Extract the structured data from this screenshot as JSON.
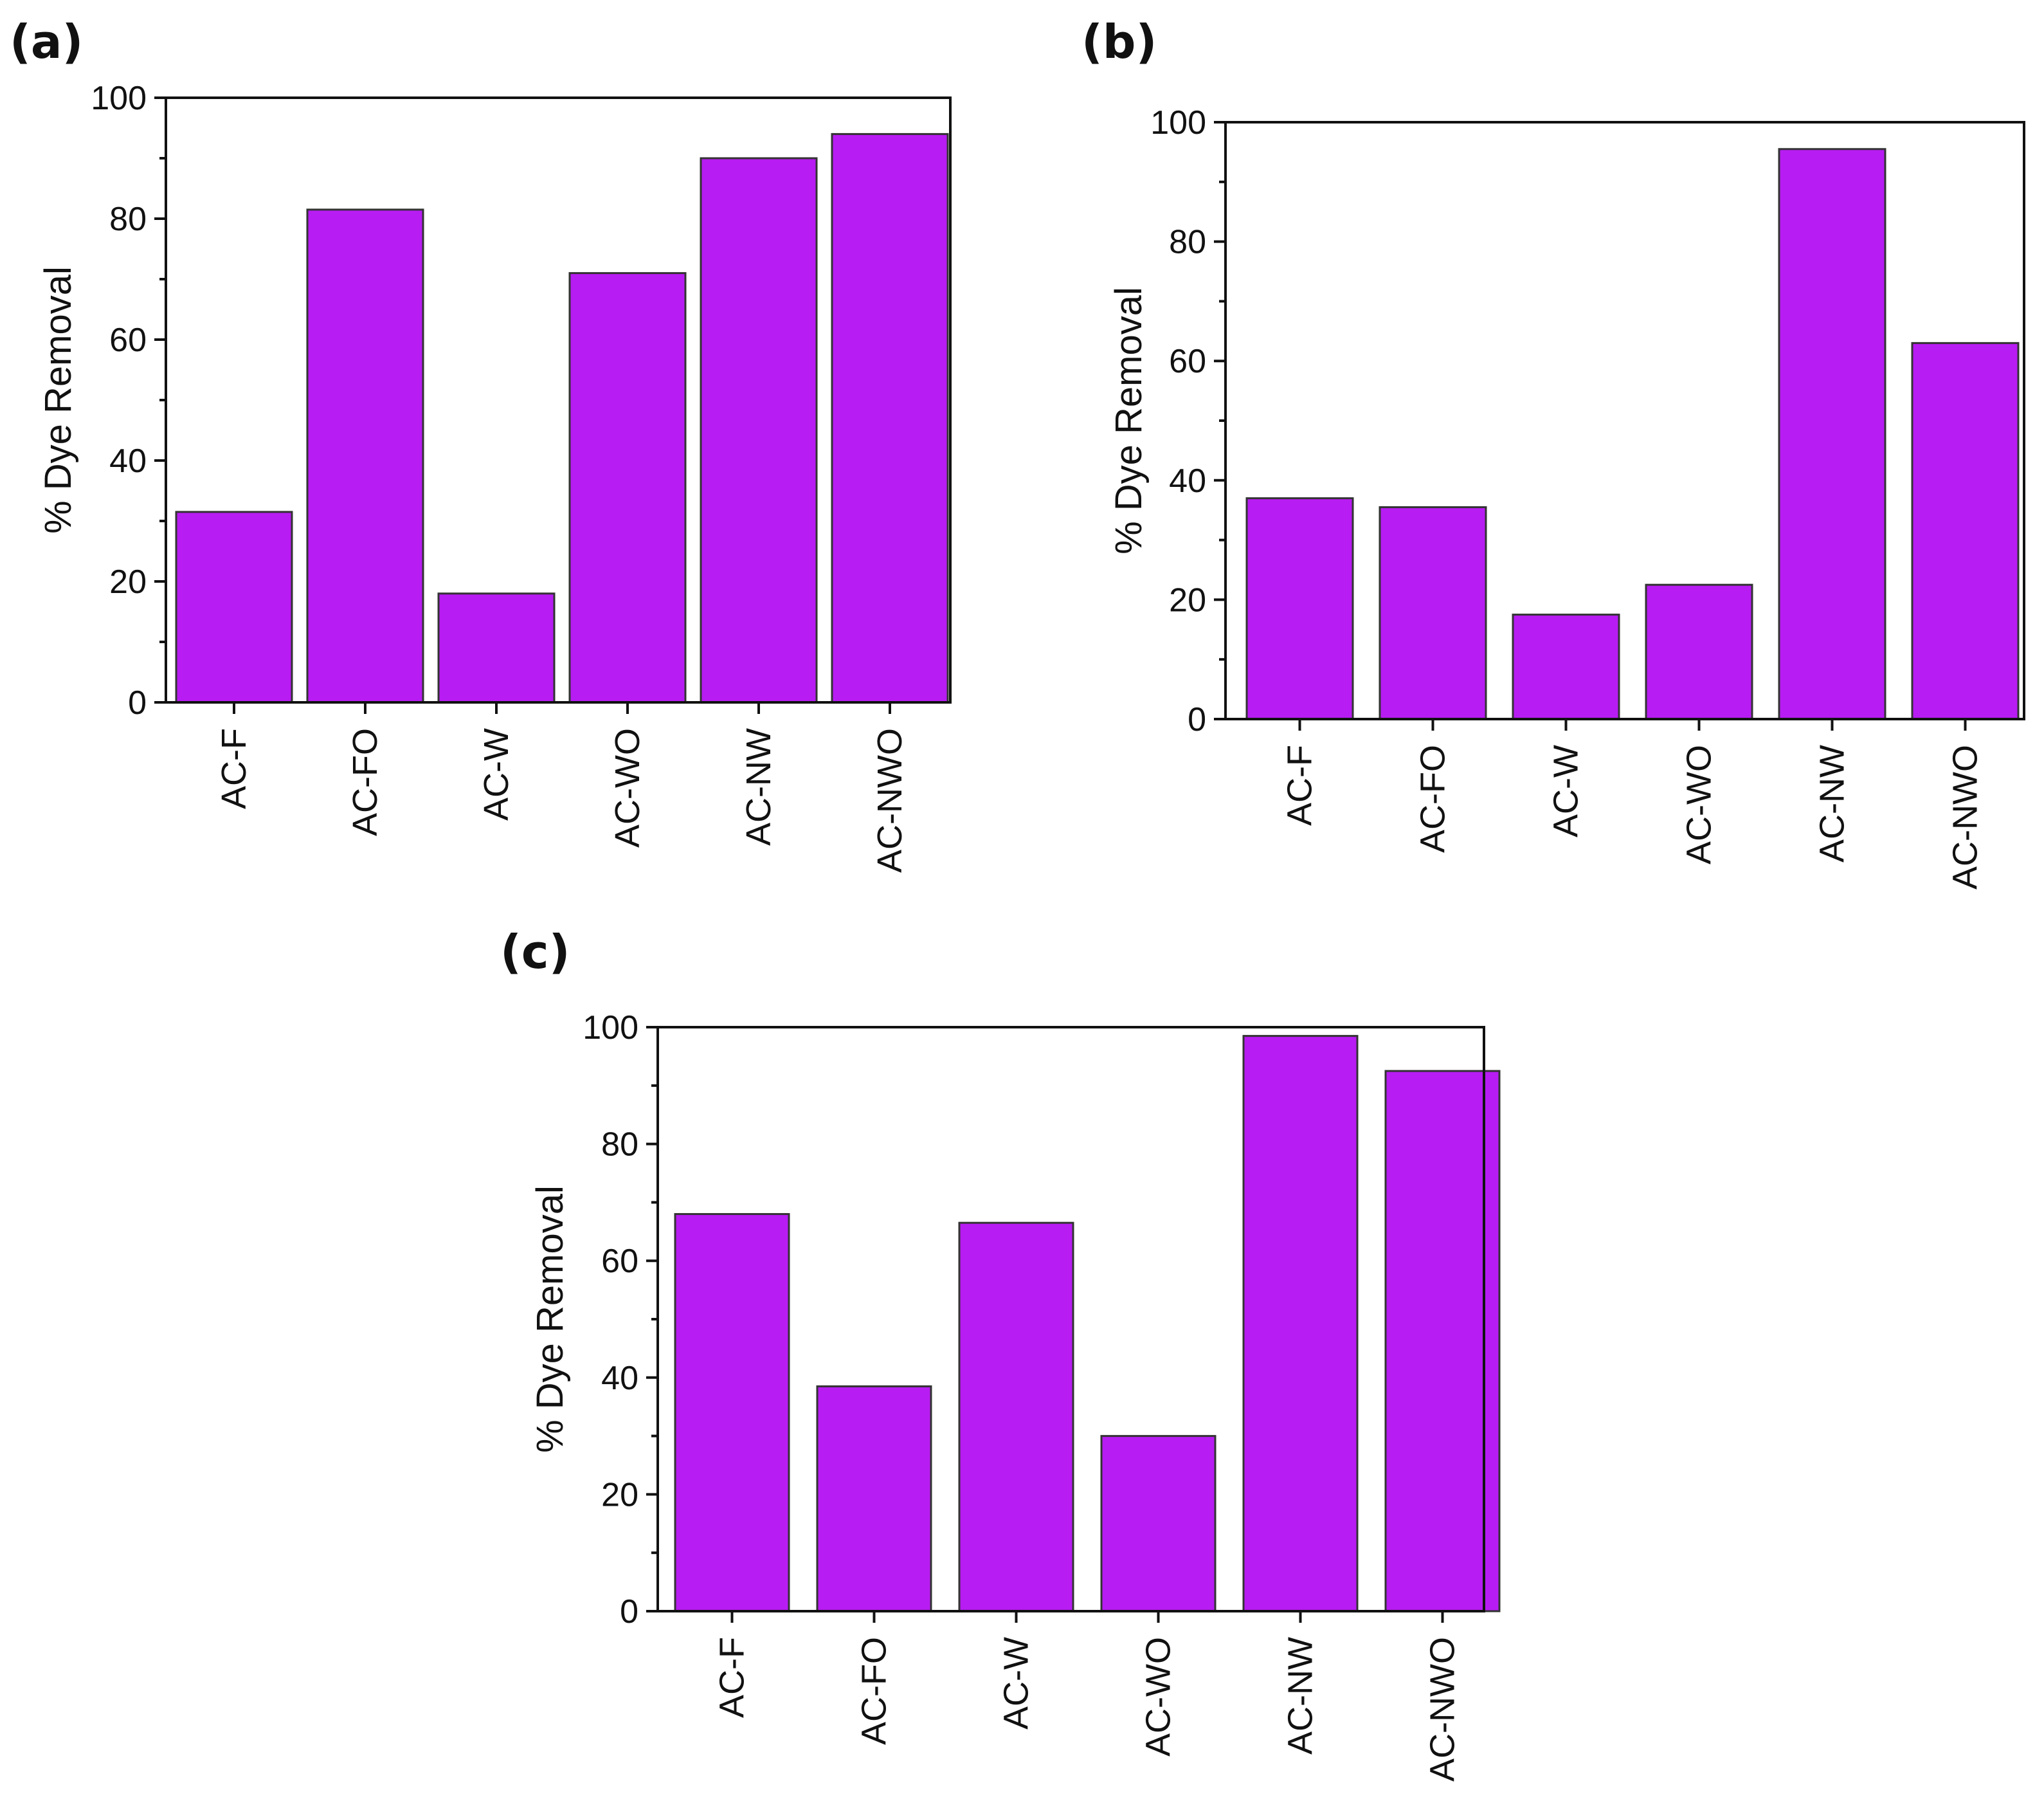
{
  "colors": {
    "bar_fill": "#B71CF2",
    "bar_stroke": "#333333",
    "axis": "#111111"
  },
  "chart_data": [
    {
      "panel": "(a)",
      "type": "bar",
      "categories": [
        "AC-F",
        "AC-FO",
        "AC-W",
        "AC-WO",
        "AC-NW",
        "AC-NWO"
      ],
      "values": [
        31.5,
        81.5,
        18,
        71,
        90,
        94
      ],
      "ylabel": "% Dye Removal",
      "xlabel": "",
      "ylim": [
        0,
        100
      ],
      "yticks": [
        0,
        20,
        40,
        60,
        80,
        100
      ],
      "grid": false
    },
    {
      "panel": "(b)",
      "type": "bar",
      "categories": [
        "AC-F",
        "AC-FO",
        "AC-W",
        "AC-WO",
        "AC-NW",
        "AC-NWO"
      ],
      "values": [
        37,
        35.5,
        17.5,
        22.5,
        95.5,
        63
      ],
      "ylabel": "% Dye Removal",
      "xlabel": "",
      "ylim": [
        0,
        100
      ],
      "yticks": [
        0,
        20,
        40,
        60,
        80,
        100
      ],
      "grid": false
    },
    {
      "panel": "(c)",
      "type": "bar",
      "categories": [
        "AC-F",
        "AC-FO",
        "AC-W",
        "AC-WO",
        "AC-NW",
        "AC-NWO"
      ],
      "values": [
        68,
        38.5,
        66.5,
        30,
        98.5,
        92.5
      ],
      "ylabel": "% Dye Removal",
      "xlabel": "",
      "ylim": [
        0,
        100
      ],
      "yticks": [
        0,
        20,
        40,
        60,
        80,
        100
      ],
      "grid": false
    }
  ]
}
